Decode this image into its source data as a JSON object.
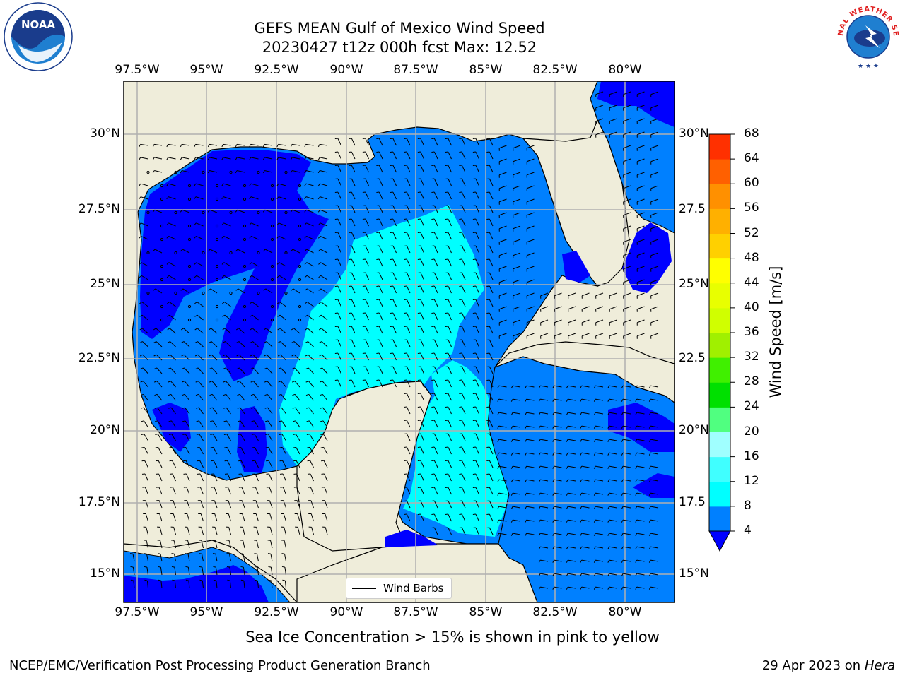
{
  "header": {
    "title_line1": "GEFS MEAN Gulf of Mexico Wind Speed",
    "title_line2": "20230427 t12z 000h fcst   Max: 12.52"
  },
  "logos": {
    "left": "NOAA",
    "right": "NATIONAL WEATHER SERVICE"
  },
  "map": {
    "lon_ticks": [
      "97.5°W",
      "95°W",
      "92.5°W",
      "90°W",
      "87.5°W",
      "85°W",
      "82.5°W",
      "80°W"
    ],
    "lat_ticks": [
      "30°N",
      "27.5°N",
      "25°N",
      "22.5°N",
      "20°N",
      "17.5°N",
      "15°N"
    ],
    "lat_ticks_right": [
      "30°N",
      "27.5",
      "25°N",
      "22.5",
      "20°N",
      "17.5",
      "15°N"
    ],
    "legend_label": "Wind Barbs",
    "colors": {
      "land": "#efedda",
      "ws_4_8": "#0080ff",
      "ws_0_4": "#0000ff",
      "ws_8_12": "#00ffff"
    }
  },
  "colorbar": {
    "label": "Wind Speed [m/s]",
    "levels": [
      "4",
      "8",
      "12",
      "16",
      "20",
      "24",
      "28",
      "32",
      "36",
      "40",
      "44",
      "48",
      "52",
      "56",
      "60",
      "64",
      "68"
    ],
    "colors": [
      "#0080ff",
      "#00ffff",
      "#40ffff",
      "#a0ffff",
      "#50ff80",
      "#00e000",
      "#40f000",
      "#a0f000",
      "#d0ff00",
      "#e8ff00",
      "#ffff00",
      "#ffd000",
      "#ffb000",
      "#ff9000",
      "#ff6000",
      "#ff3000",
      "#ff0000"
    ],
    "under_color": "#0000ff"
  },
  "caption": "Sea Ice Concentration > 15% is shown in pink to yellow",
  "footer": {
    "left": "NCEP/EMC/Verification Post Processing Product Generation Branch",
    "right_date": "29 Apr 2023 on",
    "right_machine": "Hera"
  }
}
